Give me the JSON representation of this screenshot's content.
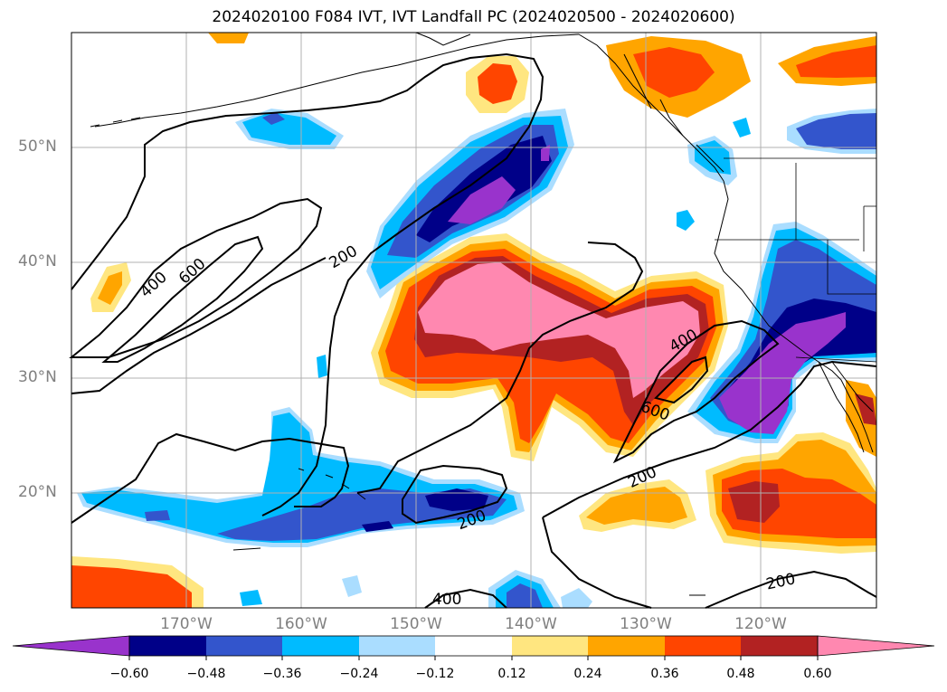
{
  "title": "2024020100 F084 IVT, IVT Landfall PC (2024020500 - 2024020600)",
  "lat_labels": [
    "50°N",
    "40°N",
    "30°N",
    "20°N"
  ],
  "lon_labels": [
    "170°W",
    "160°W",
    "150°W",
    "140°W",
    "130°W",
    "120°W"
  ],
  "contour_labels": [
    "400",
    "600",
    "200",
    "400",
    "600",
    "200",
    "200",
    "200",
    "400"
  ],
  "colorbar": {
    "ticks": [
      "−0.60",
      "−0.48",
      "−0.36",
      "−0.24",
      "−0.12",
      "0.12",
      "0.24",
      "0.36",
      "0.48",
      "0.60"
    ],
    "colors": [
      "#9933cc",
      "#000088",
      "#3355cc",
      "#00bbff",
      "#aaddff",
      "#ffffff",
      "#ffe680",
      "#ffa500",
      "#ff4500",
      "#b22222",
      "#ff88b0"
    ]
  },
  "map_data": {
    "extent_lon": [
      -180,
      -110
    ],
    "extent_lat": [
      10,
      60
    ],
    "gridlines_lon": [
      -170,
      -160,
      -150,
      -140,
      -130,
      -120
    ],
    "gridlines_lat": [
      20,
      30,
      40,
      50
    ],
    "ivt_contour_levels": [
      200,
      400,
      600
    ]
  }
}
